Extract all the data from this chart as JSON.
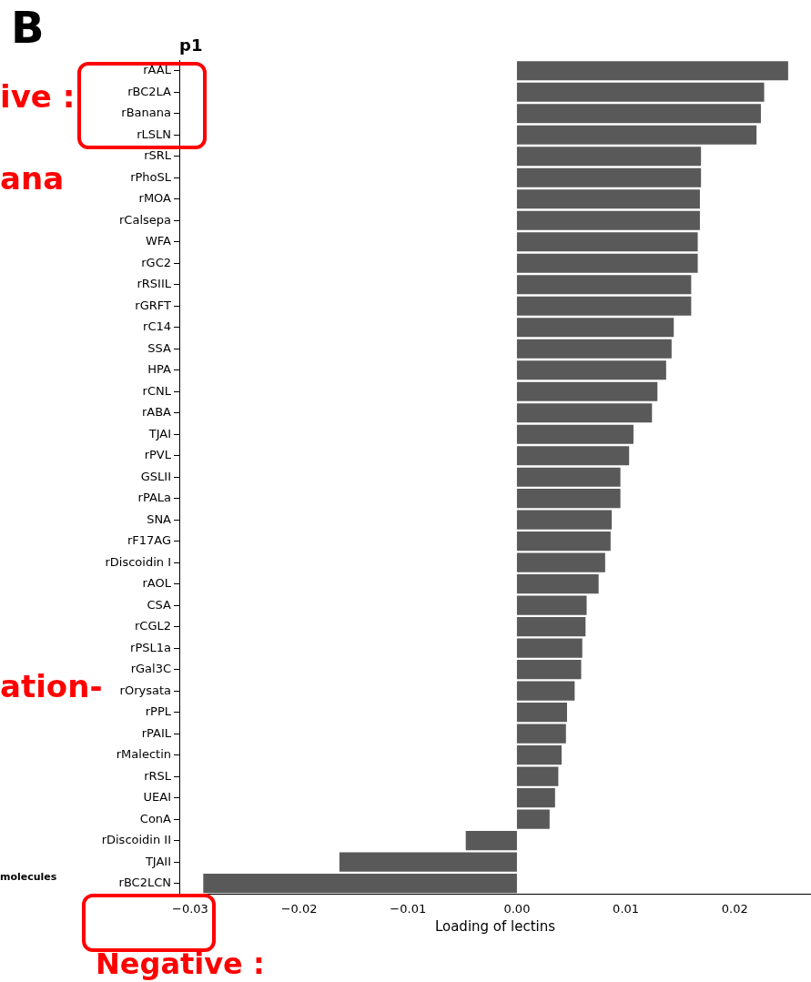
{
  "chart_data": {
    "type": "bar",
    "orientation": "horizontal",
    "title": "p1",
    "xlabel": "Loading of lectins",
    "categories": [
      "rAAL",
      "rBC2LA",
      "rBanana",
      "rLSLN",
      "rSRL",
      "rPhoSL",
      "rMOA",
      "rCalsepa",
      "WFA",
      "rGC2",
      "rRSIIL",
      "rGRFT",
      "rC14",
      "SSA",
      "HPA",
      "rCNL",
      "rABA",
      "TJAI",
      "rPVL",
      "GSLII",
      "rPALa",
      "SNA",
      "rF17AG",
      "rDiscoidin I",
      "rAOL",
      "CSA",
      "rCGL2",
      "rPSL1a",
      "rGal3C",
      "rOrysata",
      "rPPL",
      "rPAIL",
      "rMalectin",
      "rRSL",
      "UEAI",
      "ConA",
      "rDiscoidin II",
      "TJAII",
      "rBC2LCN"
    ],
    "values": [
      0.0249,
      0.0227,
      0.0224,
      0.022,
      0.0169,
      0.0169,
      0.0168,
      0.0168,
      0.0166,
      0.0166,
      0.016,
      0.016,
      0.0144,
      0.0142,
      0.0137,
      0.0129,
      0.0124,
      0.0107,
      0.0103,
      0.0095,
      0.0095,
      0.0087,
      0.0086,
      0.0081,
      0.0075,
      0.0064,
      0.0063,
      0.006,
      0.0059,
      0.0053,
      0.0046,
      0.0045,
      0.0041,
      0.0038,
      0.0035,
      0.003,
      -0.0047,
      -0.0163,
      -0.0288
    ],
    "color": "#595959",
    "xlim": [
      -0.031,
      0.027
    ],
    "xticks": [
      {
        "value": -0.03,
        "label": "−0.03"
      },
      {
        "value": -0.02,
        "label": "−0.02"
      },
      {
        "value": -0.01,
        "label": "−0.01"
      },
      {
        "value": 0,
        "label": "0.00"
      },
      {
        "value": 0.01,
        "label": "0.01"
      },
      {
        "value": 0.02,
        "label": "0.02"
      }
    ],
    "grid": false,
    "legend": false,
    "annotations": [
      "B",
      "ive :",
      "ana",
      "ation-",
      "molecules",
      "Negative :"
    ]
  }
}
